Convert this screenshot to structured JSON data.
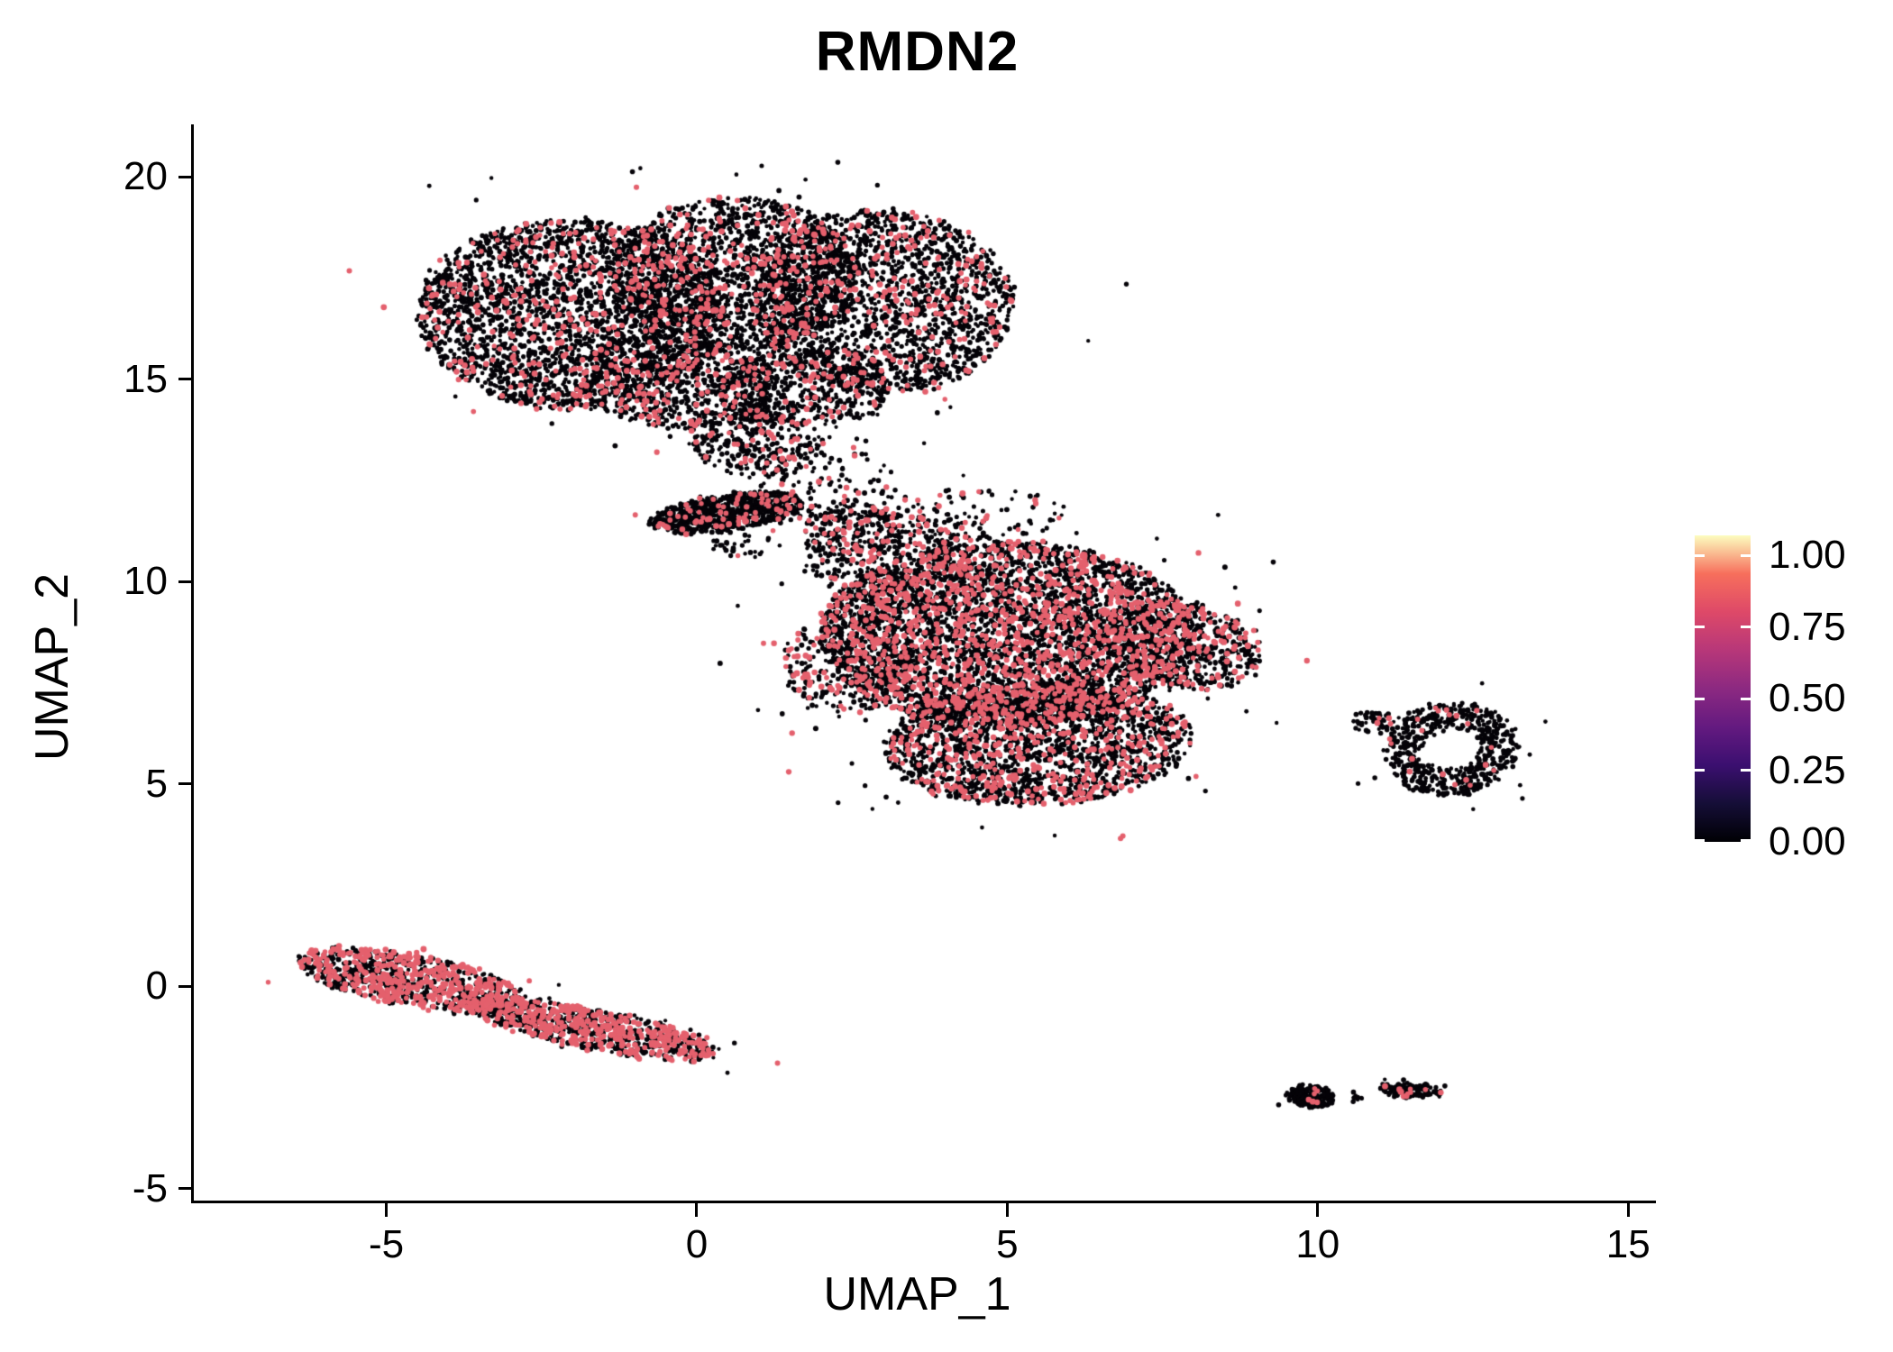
{
  "figure": {
    "title": "RMDN2"
  },
  "axes": {
    "x": {
      "label": "UMAP_1",
      "tick_labels": [
        "-5",
        "0",
        "5",
        "10",
        "15"
      ],
      "tick_values": [
        -5,
        0,
        5,
        10,
        15
      ]
    },
    "y": {
      "label": "UMAP_2",
      "tick_labels": [
        "-5",
        "0",
        "5",
        "10",
        "15",
        "20"
      ],
      "tick_values": [
        -5,
        0,
        5,
        10,
        15,
        20
      ]
    }
  },
  "colorbar": {
    "tick_labels": [
      "1.00",
      "0.75",
      "0.50",
      "0.25",
      "0.00"
    ],
    "tick_values": [
      1.0,
      0.75,
      0.5,
      0.25,
      0.0
    ],
    "gradient_stops": [
      [
        0,
        "#000004"
      ],
      [
        0.125,
        "#150e37"
      ],
      [
        0.25,
        "#3b0f70"
      ],
      [
        0.375,
        "#641a80"
      ],
      [
        0.5,
        "#8c2981"
      ],
      [
        0.625,
        "#b73779"
      ],
      [
        0.75,
        "#de4968"
      ],
      [
        0.875,
        "#f76f5c"
      ],
      [
        1,
        "#fcfdbf"
      ]
    ]
  },
  "chart_data": {
    "type": "scatter",
    "title": "RMDN2",
    "xlabel": "UMAP_1",
    "ylabel": "UMAP_2",
    "xlim": [
      -8.1,
      15.2
    ],
    "ylim": [
      -5.3,
      21.25
    ],
    "legend_range": [
      0,
      1
    ],
    "color_low": "#050308",
    "color_high": "#e4606d",
    "description": "UMAP feature plot of RMDN2 expression; most cells near 0 (black), expressing cells around 0.7 (rose).",
    "clusters": [
      {
        "name": "upper-left-large",
        "expr_frac": 0.13,
        "blobs": [
          {
            "cx": -2.0,
            "cy": 16.6,
            "rx": 2.5,
            "ry": 2.35,
            "rot": -10,
            "n": 2700
          },
          {
            "cx": 0.6,
            "cy": 17.6,
            "rx": 2.0,
            "ry": 1.9,
            "rot": 0,
            "n": 1700
          },
          {
            "cx": 3.0,
            "cy": 16.9,
            "rx": 2.1,
            "ry": 2.3,
            "rot": 8,
            "n": 2000
          },
          {
            "cx": -0.4,
            "cy": 14.9,
            "rx": 1.7,
            "ry": 1.1,
            "rot": -12,
            "n": 700
          },
          {
            "cx": 1.7,
            "cy": 14.8,
            "rx": 1.4,
            "ry": 1.0,
            "rot": 0,
            "n": 550
          },
          {
            "cx": 0.9,
            "cy": 13.4,
            "rx": 1.1,
            "ry": 0.8,
            "rot": -20,
            "n": 280
          },
          {
            "cx": 2.1,
            "cy": 12.5,
            "rx": 1.2,
            "ry": 1.1,
            "rot": 0,
            "n": 130
          }
        ]
      },
      {
        "name": "mid-left-strip",
        "expr_frac": 0.09,
        "blobs": [
          {
            "cx": 0.5,
            "cy": 11.7,
            "rx": 1.25,
            "ry": 0.45,
            "rot": 12,
            "n": 750
          },
          {
            "cx": 0.8,
            "cy": 10.9,
            "rx": 0.55,
            "ry": 0.3,
            "rot": 0,
            "n": 30
          }
        ]
      },
      {
        "name": "center-right-large",
        "expr_frac": 0.24,
        "blobs": [
          {
            "cx": 5.0,
            "cy": 8.7,
            "rx": 3.0,
            "ry": 2.3,
            "rot": 0,
            "n": 4300
          },
          {
            "cx": 5.5,
            "cy": 6.0,
            "rx": 2.5,
            "ry": 1.5,
            "rot": 5,
            "n": 2100
          },
          {
            "cx": 7.8,
            "cy": 8.4,
            "rx": 1.35,
            "ry": 1.05,
            "rot": -20,
            "n": 650
          },
          {
            "cx": 3.1,
            "cy": 10.5,
            "rx": 1.4,
            "ry": 1.2,
            "rot": -30,
            "n": 450
          },
          {
            "cx": 2.4,
            "cy": 8.0,
            "rx": 1.0,
            "ry": 1.3,
            "rot": 0,
            "n": 350
          },
          {
            "cx": 4.3,
            "cy": 11.6,
            "rx": 1.6,
            "ry": 0.7,
            "rot": 5,
            "n": 120
          },
          {
            "cx": 2.5,
            "cy": 11.3,
            "rx": 0.8,
            "ry": 0.7,
            "rot": 0,
            "n": 110
          }
        ]
      },
      {
        "name": "lower-left-elongated",
        "expr_frac": 0.45,
        "blobs": [
          {
            "cx": -4.6,
            "cy": 0.15,
            "rx": 1.9,
            "ry": 0.62,
            "rot": -16,
            "n": 900
          },
          {
            "cx": -1.7,
            "cy": -1.05,
            "rx": 2.1,
            "ry": 0.5,
            "rot": -17,
            "n": 900
          }
        ]
      },
      {
        "name": "right-ring",
        "expr_frac": 0.03,
        "blobs": [
          {
            "cx": 12.15,
            "cy": 5.85,
            "rx": 1.05,
            "ry": 1.15,
            "rot": -15,
            "inner": 0.45,
            "n": 620
          },
          {
            "cx": 10.9,
            "cy": 6.5,
            "rx": 0.45,
            "ry": 0.25,
            "rot": 0,
            "n": 50
          }
        ]
      },
      {
        "name": "bottom-small-left",
        "expr_frac": 0.01,
        "blobs": [
          {
            "cx": 9.9,
            "cy": -2.72,
            "rx": 0.38,
            "ry": 0.25,
            "rot": -10,
            "n": 230
          },
          {
            "cx": 10.62,
            "cy": -2.75,
            "rx": 0.08,
            "ry": 0.06,
            "rot": 0,
            "n": 12
          }
        ]
      },
      {
        "name": "bottom-small-right",
        "expr_frac": 0.07,
        "blobs": [
          {
            "cx": 11.5,
            "cy": -2.58,
            "rx": 0.5,
            "ry": 0.16,
            "rot": -5,
            "n": 160
          }
        ]
      },
      {
        "name": "isolated-high-point",
        "expr_frac": 1.0,
        "blobs": [
          {
            "cx": 6.85,
            "cy": 3.7,
            "rx": 0.05,
            "ry": 0.05,
            "rot": 0,
            "n": 2
          }
        ]
      }
    ]
  }
}
